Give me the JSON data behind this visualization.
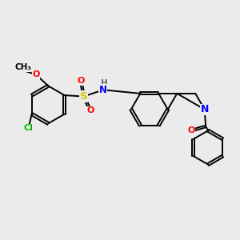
{
  "background_color": "#ebebeb",
  "atom_colors": {
    "O": "#ff0000",
    "N": "#0000ff",
    "S": "#cccc00",
    "Cl": "#00bb00",
    "H": "#666666",
    "C": "#000000"
  },
  "bond_lw": 1.4,
  "font_size": 8.5
}
